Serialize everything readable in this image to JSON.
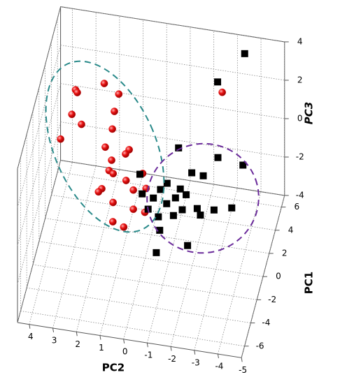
{
  "chart_data": {
    "type": "scatter3d",
    "x_label": "PC2",
    "y_label": "PC1",
    "z_label": "PC3",
    "xlim": [
      4.5,
      -5
    ],
    "ylim": [
      -7,
      7
    ],
    "zlim": [
      -4,
      4
    ],
    "xticks": [
      4,
      3,
      2,
      1,
      0,
      -1,
      -2,
      -3,
      -4,
      -5
    ],
    "yticks": [
      -6,
      -4,
      -2,
      0,
      2,
      4,
      6
    ],
    "zticks": [
      -4,
      -2,
      0,
      2,
      4
    ],
    "grid": true,
    "series": [
      {
        "color": "#e01010",
        "marker": "sphere",
        "x": [
          3.2,
          3.1,
          2.1,
          1.6,
          3.5,
          3.0,
          1.8,
          3.9,
          1.9,
          2.2,
          1.2,
          1.3,
          1.8,
          2.0,
          1.8,
          0.6,
          1.2,
          2.1,
          2.2,
          0.8,
          0.3,
          1.7,
          0.8,
          0.3,
          1.5,
          1.0,
          -2.8
        ],
        "y": [
          1.9,
          1.7,
          2.8,
          3.7,
          3.0,
          2.3,
          3.8,
          2.4,
          3.9,
          3.9,
          4.0,
          3.6,
          2.9,
          3.6,
          3.4,
          3.8,
          3.0,
          2.0,
          1.7,
          2.3,
          2.6,
          2.6,
          2.3,
          2.2,
          1.0,
          0.7,
          3.6
        ],
        "z": [
          3,
          3,
          3,
          2,
          1,
          1,
          1,
          0,
          0,
          -1,
          -1,
          -1,
          -1,
          -2,
          -2,
          -2,
          -2,
          -2,
          -2,
          -2,
          -2,
          -3,
          -3,
          -3,
          -3,
          -3,
          3
        ]
      },
      {
        "color": "#000000",
        "marker": "square",
        "x": [
          -3.4,
          -2.5,
          -2.5,
          -3.6,
          -1.0,
          -1.6,
          -2.1,
          -0.5,
          -0.3,
          -1.1,
          -1.4,
          -1.0,
          -0.1,
          -0.6,
          0.2,
          -1.3,
          -2.0,
          -2.7,
          -2.2,
          -3.4,
          -0.3,
          -0.9,
          -0.5,
          -1.8,
          -0.5,
          0.4,
          0.6
        ],
        "y": [
          6.3,
          4.4,
          4.5,
          4.2,
          3.2,
          2.9,
          2.8,
          3.3,
          2.7,
          3.0,
          2.6,
          2.2,
          1.9,
          2.4,
          2.5,
          2.1,
          1.6,
          1.7,
          1.1,
          2.1,
          2.0,
          2.3,
          0.9,
          0.0,
          -0.2,
          2.1,
          2.9
        ],
        "z": [
          3.5,
          3,
          -1,
          -1,
          0,
          -1,
          -1,
          -2,
          -2,
          -2,
          -2,
          -2,
          -2,
          -2.5,
          -3,
          -2.5,
          -2,
          -2,
          -2,
          -2,
          -3,
          -3,
          -3,
          -3,
          -3.5,
          -2,
          -1.5
        ]
      }
    ]
  }
}
